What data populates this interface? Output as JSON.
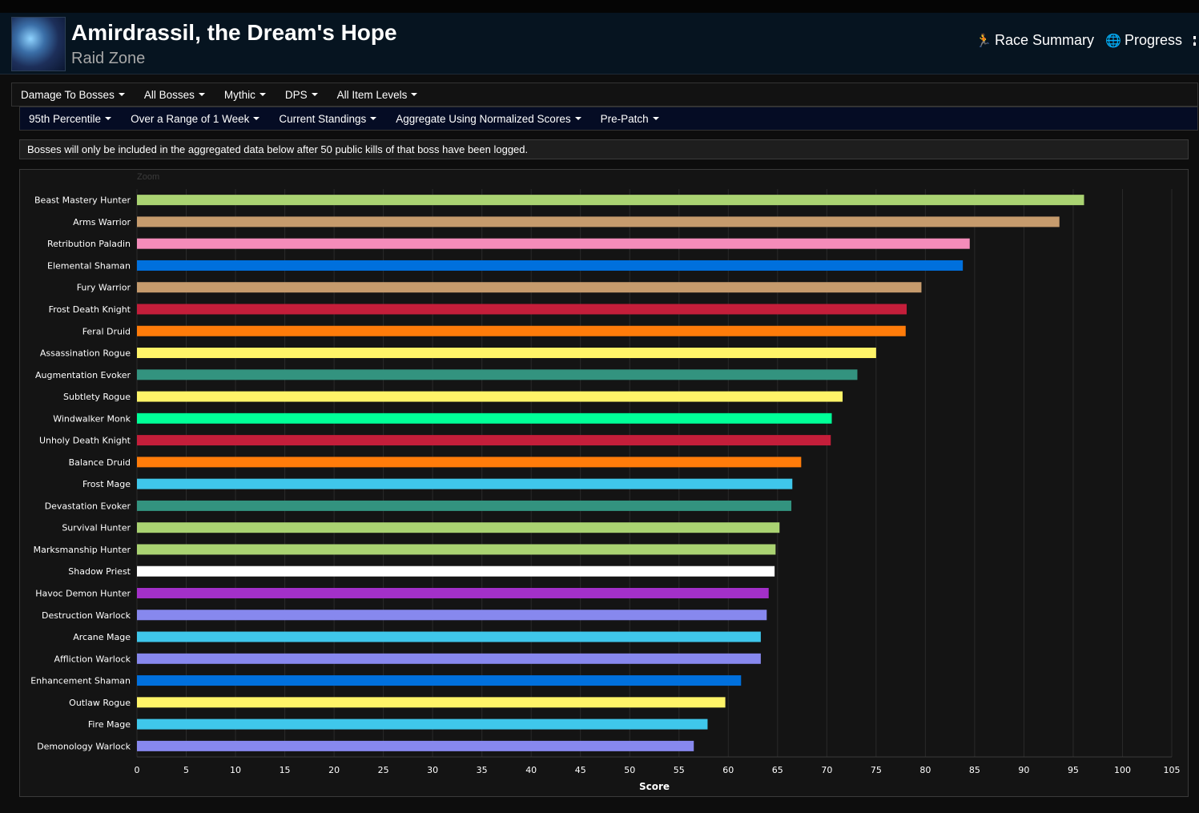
{
  "header": {
    "title": "Amirdrassil, the Dream's Hope",
    "subtitle": "Raid Zone",
    "links": [
      {
        "icon": "running-person-icon",
        "glyph": "🏃",
        "label": "Race Summary"
      },
      {
        "icon": "globe-icon",
        "glyph": "🌐",
        "label": "Progress"
      }
    ]
  },
  "filters_primary": [
    "Damage To Bosses",
    "All Bosses",
    "Mythic",
    "DPS",
    "All Item Levels"
  ],
  "filters_secondary": [
    "95th Percentile",
    "Over a Range of 1 Week",
    "Current Standings",
    "Aggregate Using Normalized Scores",
    "Pre-Patch"
  ],
  "notice": "Bosses will only be included in the aggregated data below after 50 public kills of that boss have been logged.",
  "chart": {
    "zoom_label": "Zoom"
  },
  "chart_data": {
    "type": "bar",
    "orientation": "horizontal",
    "xlabel": "Score",
    "xlim": [
      0,
      105
    ],
    "xticks": [
      0,
      5,
      10,
      15,
      20,
      25,
      30,
      35,
      40,
      45,
      50,
      55,
      60,
      65,
      70,
      75,
      80,
      85,
      90,
      95,
      100,
      105
    ],
    "grid": true,
    "categories": [
      "Beast Mastery Hunter",
      "Arms Warrior",
      "Retribution Paladin",
      "Elemental Shaman",
      "Fury Warrior",
      "Frost Death Knight",
      "Feral Druid",
      "Assassination Rogue",
      "Augmentation Evoker",
      "Subtlety Rogue",
      "Windwalker Monk",
      "Unholy Death Knight",
      "Balance Druid",
      "Frost Mage",
      "Devastation Evoker",
      "Survival Hunter",
      "Marksmanship Hunter",
      "Shadow Priest",
      "Havoc Demon Hunter",
      "Destruction Warlock",
      "Arcane Mage",
      "Affliction Warlock",
      "Enhancement Shaman",
      "Outlaw Rogue",
      "Fire Mage",
      "Demonology Warlock"
    ],
    "values": [
      96.1,
      93.6,
      84.5,
      83.8,
      79.6,
      78.1,
      78.0,
      75.0,
      73.1,
      71.6,
      70.5,
      70.4,
      67.4,
      66.5,
      66.4,
      65.2,
      64.8,
      64.7,
      64.1,
      63.9,
      63.3,
      63.3,
      61.3,
      59.7,
      57.9,
      56.5
    ],
    "colors": [
      "#AAD372",
      "#C69B6D",
      "#F48CBA",
      "#0070DD",
      "#C69B6D",
      "#C41E3A",
      "#FF7C0A",
      "#FFF468",
      "#33937F",
      "#FFF468",
      "#00FF98",
      "#C41E3A",
      "#FF7C0A",
      "#3FC7EB",
      "#33937F",
      "#AAD372",
      "#AAD372",
      "#FFFFFF",
      "#A330C9",
      "#8788EE",
      "#3FC7EB",
      "#8788EE",
      "#0070DD",
      "#FFF468",
      "#3FC7EB",
      "#8788EE"
    ]
  }
}
